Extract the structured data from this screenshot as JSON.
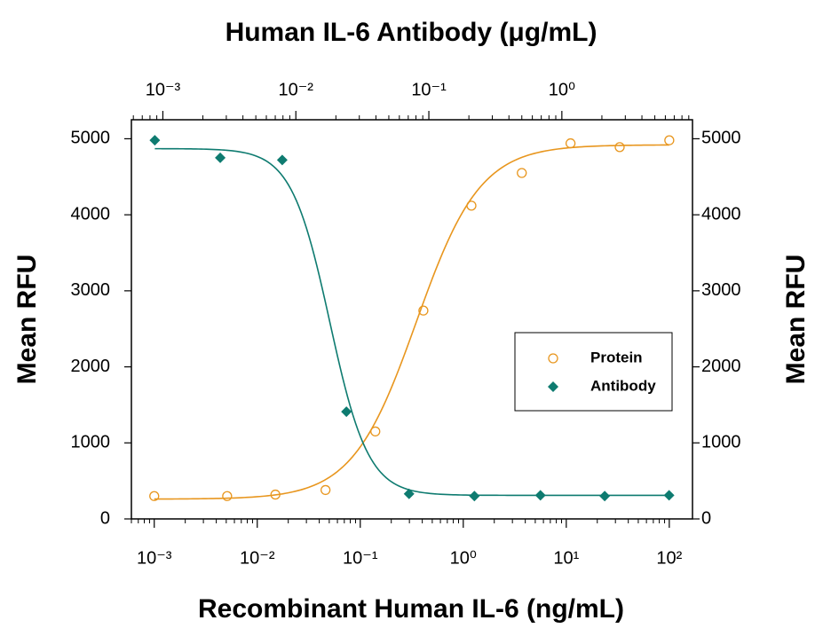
{
  "chart_data": {
    "type": "scatter",
    "x_label": "Recombinant Human IL-6 (ng/mL)",
    "x2_label": "Human IL-6 Antibody (μg/mL)",
    "y_label": "Mean RFU",
    "y2_label": "Mean RFU",
    "xscale": "log",
    "x2scale": "log",
    "xlim": [
      0.0006,
      168
    ],
    "xticks": [
      {
        "value": 0.001,
        "label": "10⁻³"
      },
      {
        "value": 0.01,
        "label": "10⁻²"
      },
      {
        "value": 0.1,
        "label": "10⁻¹"
      },
      {
        "value": 1,
        "label": "10⁰"
      },
      {
        "value": 10,
        "label": "10¹"
      },
      {
        "value": 100,
        "label": "10²"
      }
    ],
    "x2lim": [
      0.00058,
      9.6
    ],
    "x2ticks": [
      {
        "value": 0.001,
        "label": "10⁻³"
      },
      {
        "value": 0.01,
        "label": "10⁻²"
      },
      {
        "value": 0.1,
        "label": "10⁻¹"
      },
      {
        "value": 1,
        "label": "10⁰"
      }
    ],
    "ylim": [
      0,
      5250
    ],
    "yticks": [
      0,
      1000,
      2000,
      3000,
      4000,
      5000
    ],
    "y2lim": [
      0,
      5250
    ],
    "y2ticks": [
      0,
      1000,
      2000,
      3000,
      4000,
      5000
    ],
    "legend": "right",
    "series": [
      {
        "name": "Protein",
        "color": "#e8961e",
        "marker": "circle",
        "xaxis": "x",
        "x": [
          0.001,
          0.0051,
          0.015,
          0.046,
          0.14,
          0.41,
          1.2,
          3.7,
          11,
          33,
          100
        ],
        "values": [
          300,
          300,
          320,
          380,
          1150,
          2740,
          4120,
          4550,
          4940,
          4890,
          4980
        ],
        "fit": {
          "bottom": 260,
          "top": 4920,
          "ec50": 0.35,
          "hill": 1.4
        }
      },
      {
        "name": "Antibody",
        "color": "#0e7b70",
        "marker": "diamond",
        "xaxis": "x2",
        "x": [
          0.00087,
          0.0027,
          0.0079,
          0.024,
          0.071,
          0.22,
          0.69,
          2.1,
          6.4
        ],
        "values": [
          4980,
          4750,
          4720,
          1410,
          330,
          300,
          310,
          300,
          310
        ],
        "fit": {
          "bottom": 310,
          "top": 4870,
          "ec50": 0.018,
          "hill": -3
        }
      }
    ]
  }
}
